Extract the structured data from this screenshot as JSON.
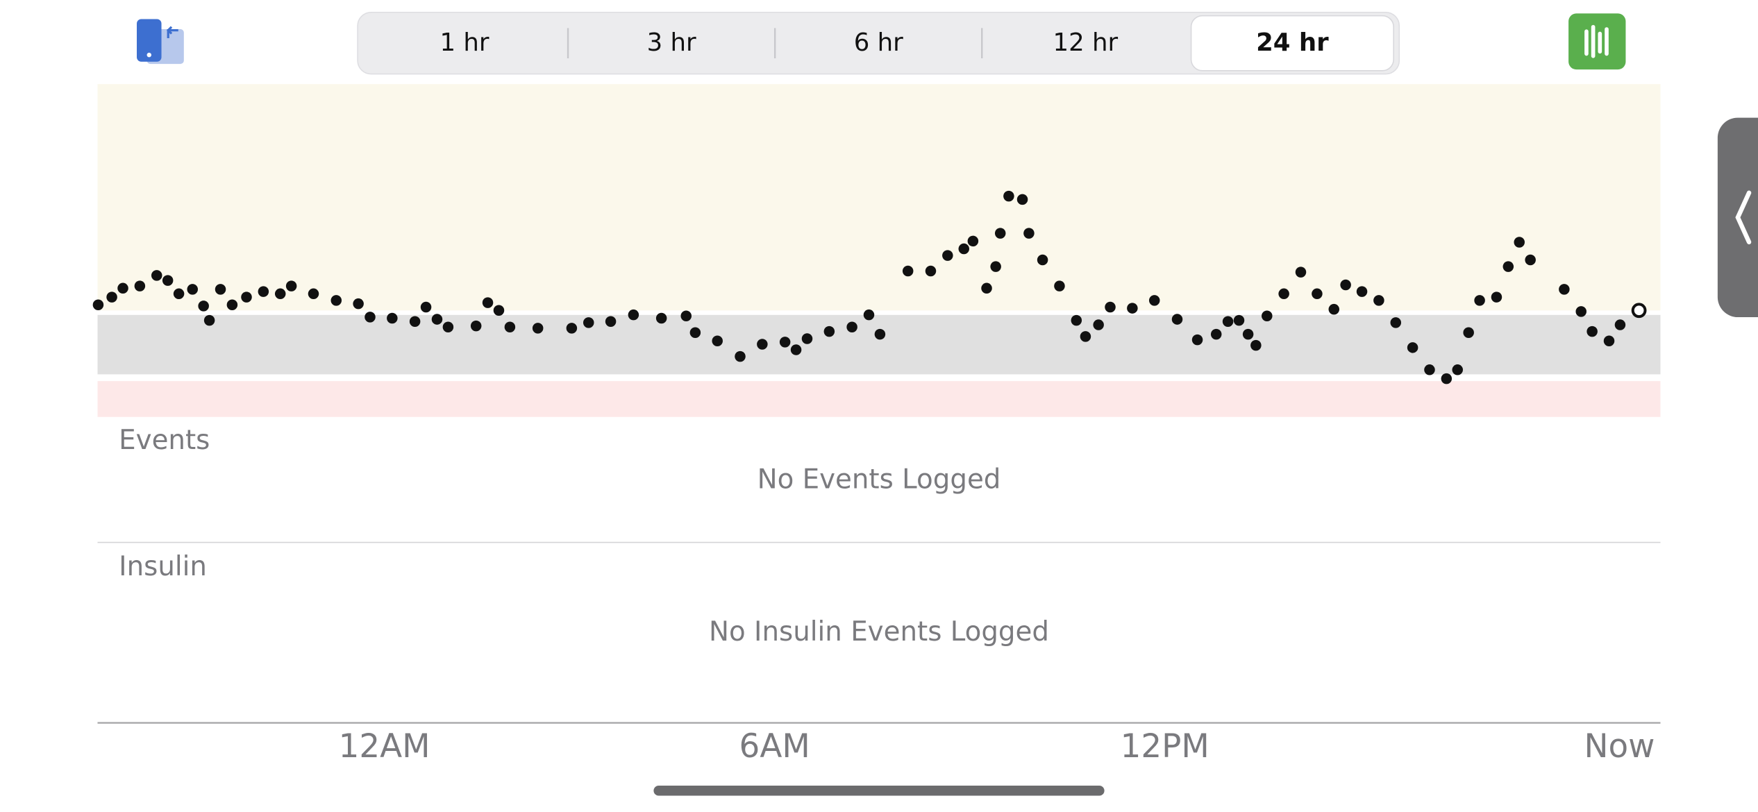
{
  "segments": {
    "options": [
      "1 hr",
      "3 hr",
      "6 hr",
      "12 hr",
      "24 hr"
    ],
    "selected": 4
  },
  "chart_data": {
    "type": "scatter",
    "x": [
      -4.4,
      -4.19,
      -4.02,
      -3.76,
      -3.5,
      -3.33,
      -3.16,
      -2.95,
      -2.78,
      -2.69,
      -2.52,
      -2.34,
      -2.12,
      -1.86,
      -1.6,
      -1.43,
      -1.09,
      -0.74,
      -0.4,
      -0.22,
      0.12,
      0.47,
      0.64,
      0.81,
      0.98,
      1.41,
      1.59,
      1.76,
      1.93,
      2.36,
      2.88,
      3.14,
      3.48,
      3.83,
      4.26,
      4.64,
      4.78,
      5.12,
      5.47,
      5.81,
      6.16,
      6.33,
      6.5,
      6.84,
      7.19,
      7.45,
      7.62,
      8.05,
      8.4,
      8.66,
      8.91,
      9.05,
      9.26,
      9.4,
      9.47,
      9.6,
      9.81,
      9.91,
      10.12,
      10.38,
      10.64,
      10.78,
      10.98,
      11.16,
      11.5,
      11.84,
      12.19,
      12.5,
      12.79,
      12.97,
      13.14,
      13.28,
      13.4,
      13.57,
      13.83,
      14.09,
      14.34,
      14.6,
      14.78,
      15.03,
      15.29,
      15.55,
      15.81,
      16.07,
      16.33,
      16.5,
      16.67,
      16.84,
      17.1,
      17.28,
      17.45,
      17.62,
      18.14,
      18.4,
      18.57,
      18.83,
      19.0,
      19.29
    ],
    "values": [
      202,
      216,
      232,
      236,
      255,
      246,
      222,
      230,
      200,
      174,
      230,
      202,
      216,
      226,
      222,
      236,
      222,
      210,
      204,
      180,
      178,
      172,
      198,
      176,
      162,
      164,
      206,
      192,
      162,
      160,
      160,
      170,
      172,
      184,
      178,
      182,
      152,
      137,
      109,
      131,
      135,
      121,
      141,
      154,
      162,
      184,
      149,
      263,
      263,
      291,
      303,
      317,
      232,
      271,
      331,
      398,
      392,
      331,
      283,
      236,
      174,
      145,
      166,
      198,
      196,
      210,
      176,
      139,
      149,
      172,
      174,
      149,
      129,
      182,
      222,
      261,
      222,
      194,
      238,
      226,
      210,
      170,
      125,
      85,
      69,
      85,
      152,
      210,
      216,
      271,
      315,
      283,
      230,
      190,
      154,
      137,
      166,
      192
    ],
    "color": "#111111",
    "xlim": [
      -4.41,
      19.62
    ],
    "ylim": [
      0,
      600
    ],
    "xticks": [
      {
        "value": 0,
        "label": "12AM"
      },
      {
        "value": 6,
        "label": "6AM"
      },
      {
        "value": 12,
        "label": "12PM"
      }
    ],
    "now_label": "Now"
  },
  "events": {
    "title": "Events",
    "empty": "No Events Logged"
  },
  "insulin": {
    "title": "Insulin",
    "empty": "No Insulin Events Logged"
  }
}
